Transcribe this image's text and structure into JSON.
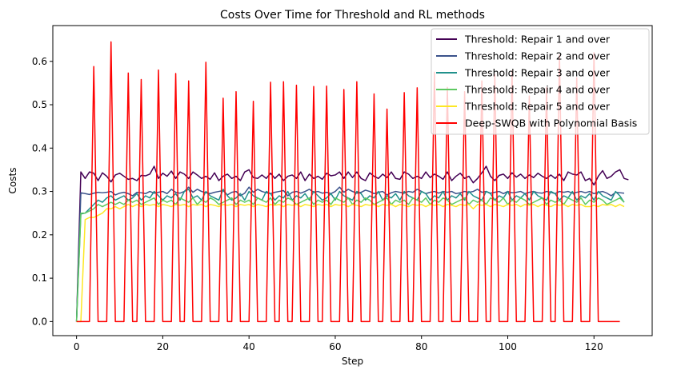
{
  "chart_data": {
    "type": "line",
    "title": "Costs Over Time for Threshold and RL methods",
    "xlabel": "Step",
    "ylabel": "Costs",
    "xlim": [
      -5.5,
      133.5
    ],
    "ylim": [
      -0.0325,
      0.6825
    ],
    "xticks": [
      0,
      20,
      40,
      60,
      80,
      100,
      120
    ],
    "yticks": [
      0.0,
      0.1,
      0.2,
      0.3,
      0.4,
      0.5,
      0.6
    ],
    "ytick_labels": [
      "0.0",
      "0.1",
      "0.2",
      "0.3",
      "0.4",
      "0.5",
      "0.6"
    ],
    "grid": false,
    "legend_position": "top-right",
    "series": [
      {
        "name": "Threshold: Repair 1 and over",
        "color": "#440154",
        "values": [
          0,
          0.345,
          0.33,
          0.345,
          0.342,
          0.325,
          0.343,
          0.335,
          0.322,
          0.338,
          0.342,
          0.335,
          0.328,
          0.33,
          0.325,
          0.337,
          0.336,
          0.34,
          0.358,
          0.33,
          0.342,
          0.335,
          0.347,
          0.33,
          0.345,
          0.34,
          0.33,
          0.345,
          0.338,
          0.33,
          0.335,
          0.328,
          0.343,
          0.325,
          0.335,
          0.34,
          0.33,
          0.335,
          0.325,
          0.345,
          0.35,
          0.332,
          0.33,
          0.338,
          0.33,
          0.342,
          0.33,
          0.34,
          0.325,
          0.335,
          0.338,
          0.33,
          0.345,
          0.325,
          0.34,
          0.33,
          0.335,
          0.328,
          0.342,
          0.336,
          0.338,
          0.345,
          0.33,
          0.345,
          0.332,
          0.345,
          0.33,
          0.325,
          0.343,
          0.335,
          0.33,
          0.34,
          0.332,
          0.345,
          0.33,
          0.328,
          0.345,
          0.34,
          0.33,
          0.335,
          0.33,
          0.345,
          0.332,
          0.34,
          0.335,
          0.328,
          0.345,
          0.325,
          0.335,
          0.342,
          0.33,
          0.335,
          0.32,
          0.33,
          0.343,
          0.358,
          0.335,
          0.325,
          0.337,
          0.34,
          0.33,
          0.343,
          0.333,
          0.34,
          0.33,
          0.338,
          0.332,
          0.342,
          0.335,
          0.33,
          0.338,
          0.33,
          0.34,
          0.325,
          0.345,
          0.34,
          0.338,
          0.345,
          0.325,
          0.33,
          0.315,
          0.335,
          0.348,
          0.33,
          0.335,
          0.345,
          0.35,
          0.33,
          0.327
        ]
      },
      {
        "name": "Threshold: Repair 2 and over",
        "color": "#3b528b",
        "values": [
          0,
          0.297,
          0.295,
          0.293,
          0.296,
          0.298,
          0.297,
          0.298,
          0.3,
          0.292,
          0.296,
          0.298,
          0.295,
          0.29,
          0.298,
          0.297,
          0.295,
          0.3,
          0.296,
          0.298,
          0.3,
          0.295,
          0.305,
          0.298,
          0.296,
          0.3,
          0.31,
          0.298,
          0.305,
          0.3,
          0.297,
          0.295,
          0.298,
          0.3,
          0.302,
          0.292,
          0.298,
          0.3,
          0.29,
          0.296,
          0.31,
          0.298,
          0.305,
          0.3,
          0.297,
          0.295,
          0.298,
          0.3,
          0.302,
          0.29,
          0.298,
          0.3,
          0.296,
          0.3,
          0.305,
          0.298,
          0.3,
          0.296,
          0.298,
          0.295,
          0.3,
          0.31,
          0.298,
          0.305,
          0.3,
          0.296,
          0.298,
          0.303,
          0.3,
          0.295,
          0.298,
          0.3,
          0.292,
          0.297,
          0.3,
          0.298,
          0.296,
          0.3,
          0.298,
          0.305,
          0.3,
          0.295,
          0.298,
          0.3,
          0.296,
          0.3,
          0.298,
          0.3,
          0.295,
          0.297,
          0.3,
          0.298,
          0.3,
          0.305,
          0.298,
          0.3,
          0.296,
          0.298,
          0.3,
          0.295,
          0.3,
          0.297,
          0.298,
          0.3,
          0.295,
          0.298,
          0.3,
          0.297,
          0.296,
          0.3,
          0.298,
          0.295,
          0.3,
          0.298,
          0.3,
          0.296,
          0.298,
          0.3,
          0.297,
          0.3,
          0.295,
          0.298,
          0.3,
          0.296,
          0.29,
          0.298,
          0.297,
          0.296
        ]
      },
      {
        "name": "Threshold: Repair 3 and over",
        "color": "#21918c",
        "values": [
          0,
          0.248,
          0.25,
          0.26,
          0.27,
          0.28,
          0.275,
          0.285,
          0.29,
          0.28,
          0.285,
          0.29,
          0.28,
          0.285,
          0.295,
          0.28,
          0.29,
          0.285,
          0.3,
          0.29,
          0.28,
          0.29,
          0.285,
          0.295,
          0.28,
          0.3,
          0.305,
          0.285,
          0.29,
          0.28,
          0.3,
          0.29,
          0.285,
          0.28,
          0.305,
          0.29,
          0.28,
          0.285,
          0.295,
          0.28,
          0.3,
          0.29,
          0.285,
          0.28,
          0.3,
          0.295,
          0.28,
          0.29,
          0.285,
          0.3,
          0.28,
          0.29,
          0.285,
          0.295,
          0.28,
          0.3,
          0.29,
          0.28,
          0.285,
          0.295,
          0.28,
          0.3,
          0.29,
          0.285,
          0.28,
          0.3,
          0.295,
          0.28,
          0.29,
          0.285,
          0.3,
          0.28,
          0.29,
          0.285,
          0.295,
          0.28,
          0.3,
          0.29,
          0.285,
          0.28,
          0.3,
          0.295,
          0.28,
          0.29,
          0.285,
          0.3,
          0.28,
          0.29,
          0.285,
          0.295,
          0.28,
          0.3,
          0.29,
          0.285,
          0.28,
          0.3,
          0.295,
          0.28,
          0.29,
          0.285,
          0.3,
          0.28,
          0.29,
          0.285,
          0.295,
          0.28,
          0.3,
          0.29,
          0.285,
          0.28,
          0.3,
          0.295,
          0.28,
          0.29,
          0.285,
          0.3,
          0.28,
          0.29,
          0.285,
          0.295,
          0.28,
          0.3,
          0.29,
          0.285,
          0.28,
          0.3,
          0.29,
          0.275
        ]
      },
      {
        "name": "Threshold: Repair 4 and over",
        "color": "#5ec962",
        "values": [
          0,
          0.25,
          0.25,
          0.255,
          0.26,
          0.27,
          0.265,
          0.27,
          0.275,
          0.27,
          0.275,
          0.27,
          0.28,
          0.275,
          0.28,
          0.27,
          0.275,
          0.28,
          0.285,
          0.27,
          0.28,
          0.275,
          0.28,
          0.27,
          0.285,
          0.28,
          0.275,
          0.285,
          0.27,
          0.28,
          0.275,
          0.285,
          0.28,
          0.27,
          0.275,
          0.28,
          0.285,
          0.27,
          0.28,
          0.275,
          0.28,
          0.27,
          0.285,
          0.28,
          0.275,
          0.285,
          0.27,
          0.28,
          0.275,
          0.285,
          0.28,
          0.27,
          0.275,
          0.28,
          0.285,
          0.27,
          0.28,
          0.275,
          0.28,
          0.27,
          0.285,
          0.28,
          0.275,
          0.285,
          0.27,
          0.28,
          0.275,
          0.285,
          0.28,
          0.27,
          0.275,
          0.28,
          0.285,
          0.27,
          0.28,
          0.275,
          0.28,
          0.27,
          0.285,
          0.28,
          0.275,
          0.285,
          0.27,
          0.28,
          0.275,
          0.285,
          0.28,
          0.27,
          0.275,
          0.28,
          0.285,
          0.27,
          0.28,
          0.275,
          0.28,
          0.27,
          0.285,
          0.28,
          0.275,
          0.285,
          0.27,
          0.28,
          0.275,
          0.285,
          0.28,
          0.27,
          0.275,
          0.28,
          0.285,
          0.27,
          0.28,
          0.275,
          0.28,
          0.27,
          0.285,
          0.28,
          0.275,
          0.285,
          0.27,
          0.28,
          0.275,
          0.285,
          0.28,
          0.27,
          0.275,
          0.28,
          0.285,
          0.275
        ]
      },
      {
        "name": "Threshold: Repair 5 and over",
        "color": "#fde725",
        "values": [
          0,
          0,
          0.235,
          0.24,
          0.24,
          0.245,
          0.25,
          0.26,
          0.26,
          0.265,
          0.26,
          0.265,
          0.27,
          0.265,
          0.27,
          0.265,
          0.27,
          0.268,
          0.27,
          0.265,
          0.27,
          0.268,
          0.265,
          0.27,
          0.268,
          0.27,
          0.265,
          0.27,
          0.268,
          0.27,
          0.265,
          0.27,
          0.268,
          0.265,
          0.27,
          0.268,
          0.27,
          0.265,
          0.27,
          0.268,
          0.27,
          0.265,
          0.27,
          0.268,
          0.265,
          0.27,
          0.268,
          0.27,
          0.265,
          0.27,
          0.268,
          0.27,
          0.265,
          0.27,
          0.268,
          0.265,
          0.27,
          0.268,
          0.27,
          0.265,
          0.27,
          0.268,
          0.27,
          0.265,
          0.27,
          0.268,
          0.265,
          0.27,
          0.268,
          0.27,
          0.265,
          0.27,
          0.268,
          0.27,
          0.265,
          0.27,
          0.268,
          0.265,
          0.27,
          0.268,
          0.27,
          0.265,
          0.27,
          0.268,
          0.27,
          0.265,
          0.27,
          0.268,
          0.265,
          0.27,
          0.268,
          0.27,
          0.26,
          0.27,
          0.268,
          0.27,
          0.265,
          0.27,
          0.268,
          0.265,
          0.27,
          0.268,
          0.27,
          0.265,
          0.27,
          0.268,
          0.27,
          0.265,
          0.27,
          0.268,
          0.265,
          0.27,
          0.268,
          0.27,
          0.265,
          0.27,
          0.268,
          0.27,
          0.265,
          0.265,
          0.268,
          0.265,
          0.27,
          0.268,
          0.27,
          0.265,
          0.27,
          0.265
        ]
      },
      {
        "name": "Deep-SWQB with Polynomial Basis",
        "color": "#ff0000",
        "values": [
          0,
          0,
          0,
          0,
          0.588,
          0,
          0,
          0,
          0.645,
          0,
          0,
          0,
          0.573,
          0,
          0,
          0.558,
          0,
          0,
          0,
          0.58,
          0,
          0,
          0,
          0.572,
          0,
          0,
          0.555,
          0,
          0,
          0,
          0.598,
          0,
          0,
          0,
          0.515,
          0,
          0,
          0.53,
          0,
          0,
          0,
          0.508,
          0,
          0,
          0,
          0.552,
          0,
          0,
          0.553,
          0,
          0,
          0.545,
          0,
          0,
          0,
          0.542,
          0,
          0,
          0.543,
          0,
          0,
          0,
          0.535,
          0,
          0,
          0.553,
          0,
          0,
          0,
          0.525,
          0,
          0,
          0.49,
          0,
          0,
          0,
          0.528,
          0,
          0,
          0.539,
          0,
          0,
          0,
          0.575,
          0,
          0,
          0.54,
          0,
          0,
          0,
          0.53,
          0,
          0,
          0,
          0.555,
          0,
          0,
          0.57,
          0,
          0,
          0,
          0.578,
          0,
          0,
          0,
          0.52,
          0,
          0,
          0,
          0.54,
          0,
          0,
          0.615,
          0,
          0,
          0,
          0.562,
          0,
          0,
          0,
          0.62,
          0,
          0,
          0,
          0,
          0,
          0
        ]
      }
    ]
  }
}
